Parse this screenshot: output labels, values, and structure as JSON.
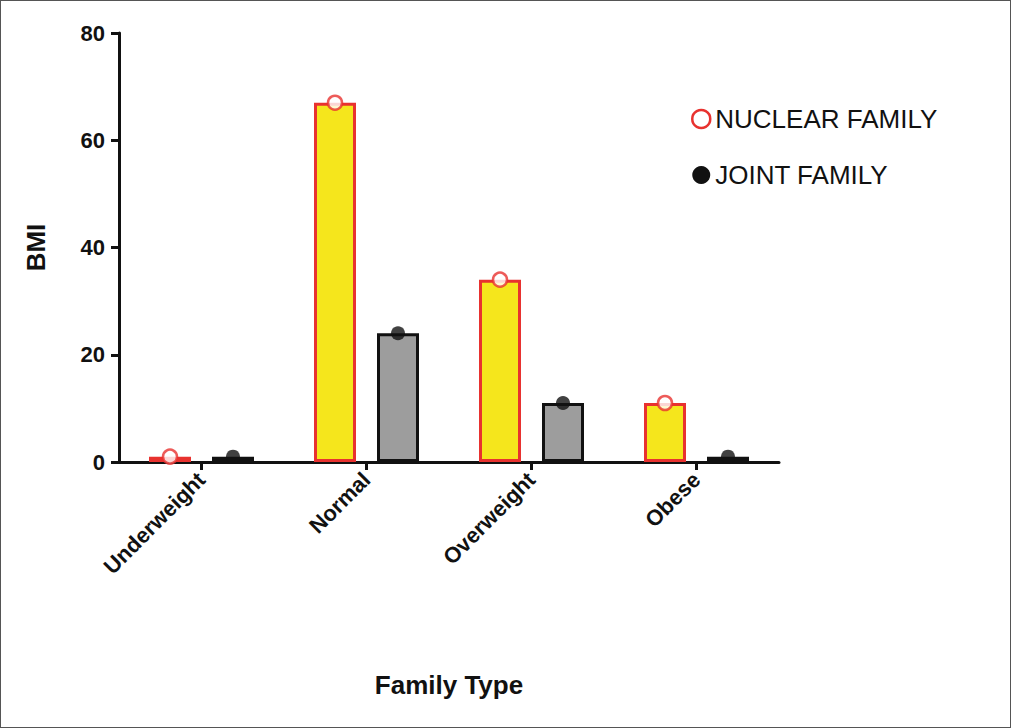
{
  "chart_data": {
    "type": "bar",
    "x_label": "Family Type",
    "y_label": "BMI",
    "categories": [
      "Underweight",
      "Normal",
      "Overweight",
      "Obese"
    ],
    "series": [
      {
        "name": "NUCLEAR FAMILY",
        "color": "#f5e61c",
        "marker": "circle-open",
        "values": [
          1,
          67,
          34,
          11
        ]
      },
      {
        "name": "JOINT FAMILY",
        "color": "#9d9d9d",
        "marker": "circle",
        "values": [
          1,
          24,
          11,
          1
        ]
      }
    ],
    "ylim": [
      0,
      80
    ],
    "yticks": [
      0,
      20,
      40,
      60,
      80
    ],
    "grid": false,
    "legend": "right"
  }
}
